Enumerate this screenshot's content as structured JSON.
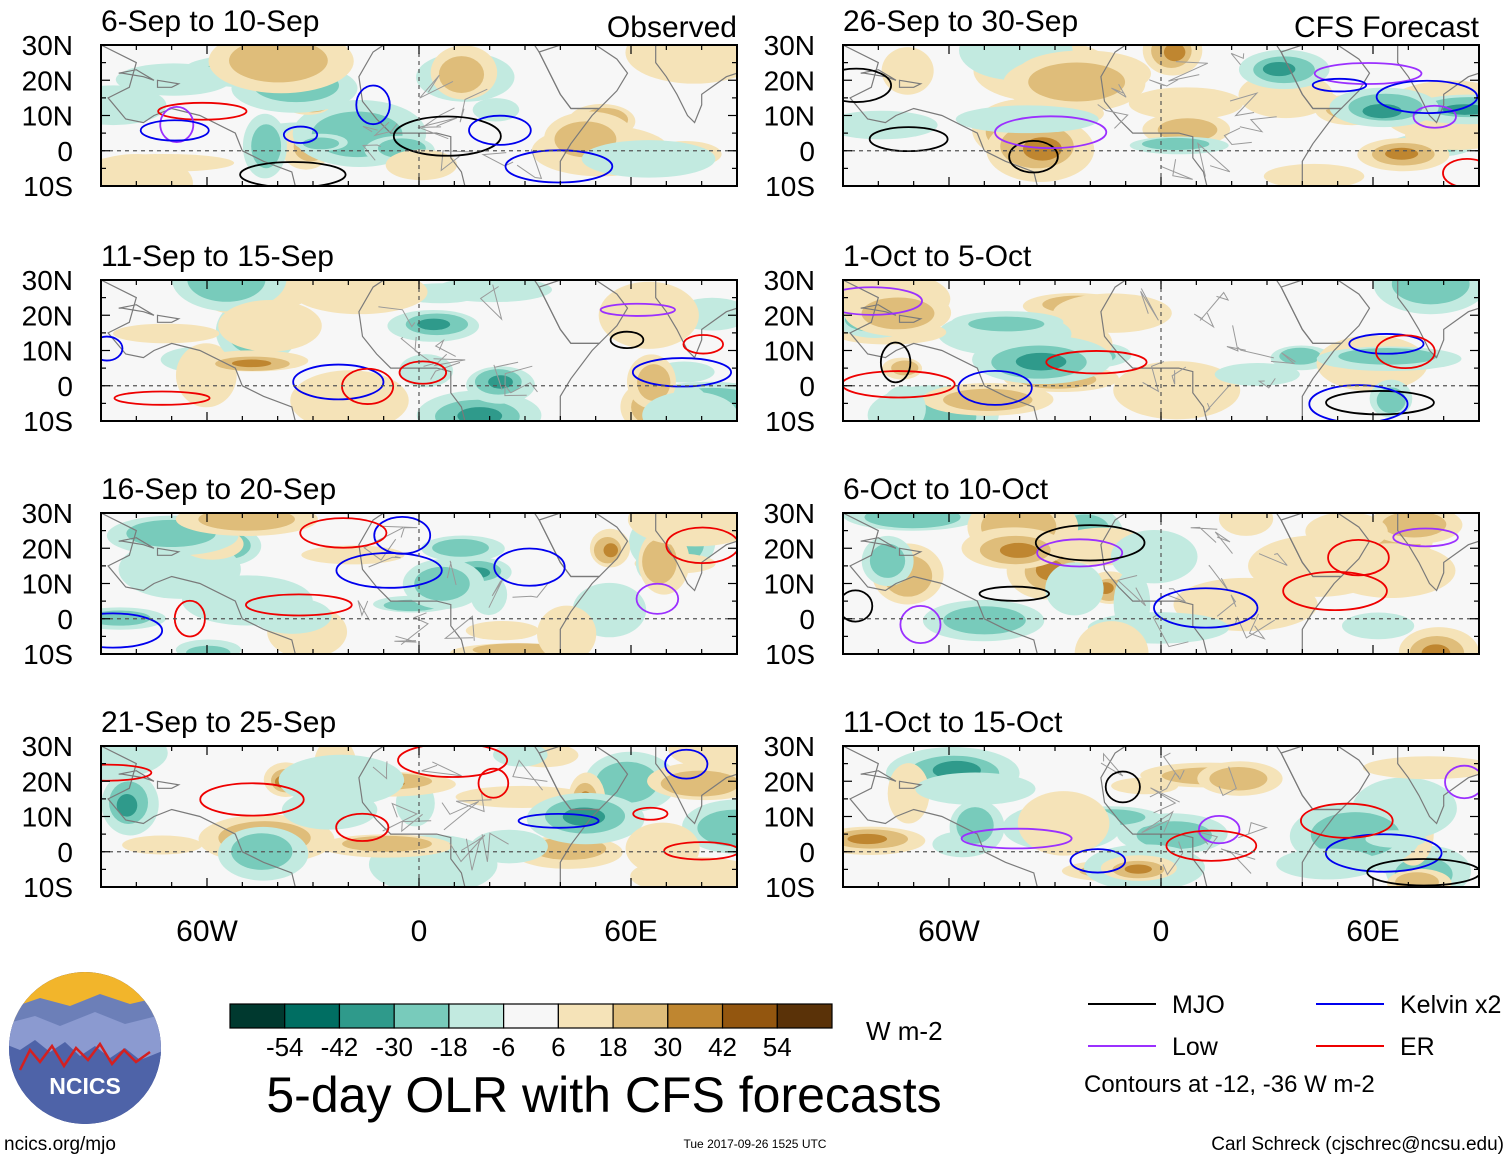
{
  "chart_data": {
    "type": "heatmap",
    "title": "5-day OLR with CFS forecasts",
    "units": "W m-2",
    "colorbar": {
      "ticks": [
        "-54",
        "-42",
        "-30",
        "-18",
        "-6",
        "6",
        "18",
        "30",
        "42",
        "54"
      ],
      "colors": [
        "#00392f",
        "#006e62",
        "#2f9a8b",
        "#78cbbb",
        "#c2eae0",
        "#f7f7f7",
        "#f5e3b8",
        "#dfbd7a",
        "#bf8630",
        "#93560f",
        "#5a3208"
      ]
    },
    "lat_labels": [
      "30N",
      "20N",
      "10N",
      "0",
      "10S"
    ],
    "lon_labels": [
      "60W",
      "0",
      "60E"
    ],
    "columns": [
      {
        "label": "Observed",
        "panels": [
          "6-Sep to 10-Sep",
          "11-Sep to 15-Sep",
          "16-Sep to 20-Sep",
          "21-Sep to 25-Sep"
        ]
      },
      {
        "label": "CFS Forecast",
        "panels": [
          "26-Sep to 30-Sep",
          "1-Oct to 5-Oct",
          "6-Oct to 10-Oct",
          "11-Oct to 15-Oct"
        ]
      }
    ],
    "legend": {
      "items": [
        {
          "label": "MJO",
          "color": "#000000"
        },
        {
          "label": "Kelvin x2",
          "color": "#0000ee"
        },
        {
          "label": "Low",
          "color": "#9b30ff"
        },
        {
          "label": "ER",
          "color": "#ee0000"
        }
      ],
      "note": "Contours at -12, -36 W m-2"
    }
  },
  "logo": {
    "text": "NCICS"
  },
  "footer": {
    "left": "ncics.org/mjo",
    "center": "Tue 2017-09-26 1525 UTC",
    "right": "Carl Schreck (cjschrec@ncsu.edu)"
  }
}
